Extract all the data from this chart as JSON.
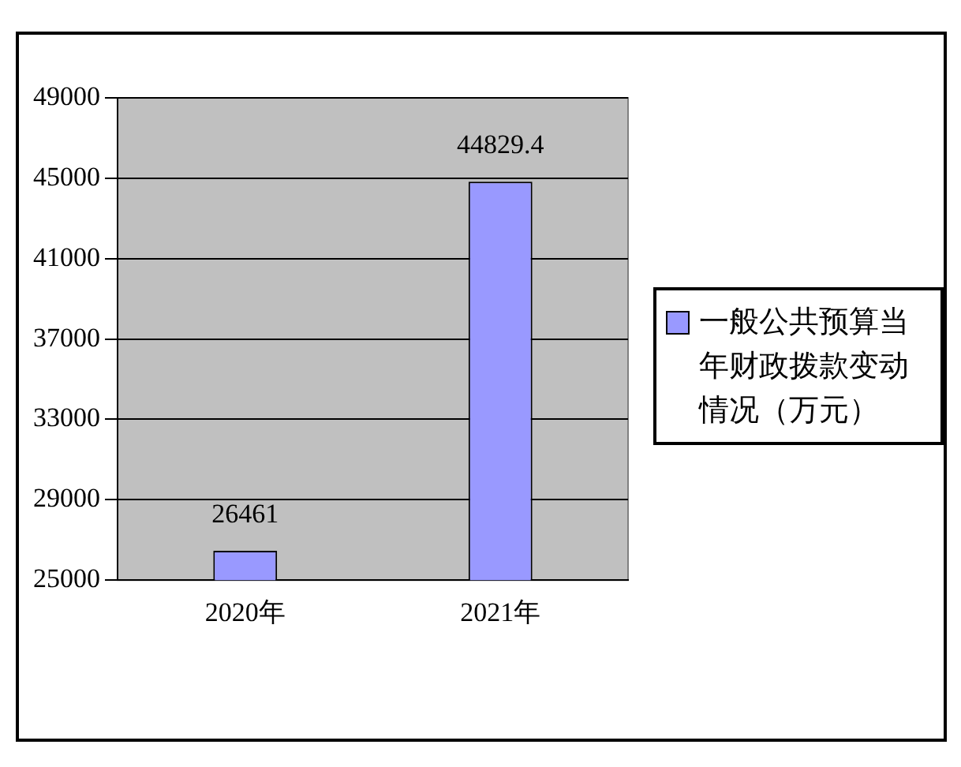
{
  "chart_data": {
    "type": "bar",
    "categories": [
      "2020年",
      "2021年"
    ],
    "series": [
      {
        "name": "一般公共预算当年财政拨款变动情况（万元）",
        "color": "#9999ff",
        "values": [
          26461,
          44829.4
        ]
      }
    ],
    "ylim": [
      25000,
      49000
    ],
    "yticks": [
      25000,
      29000,
      33000,
      37000,
      41000,
      45000,
      49000
    ],
    "grid": "y",
    "legend": "right",
    "data_labels": true
  }
}
